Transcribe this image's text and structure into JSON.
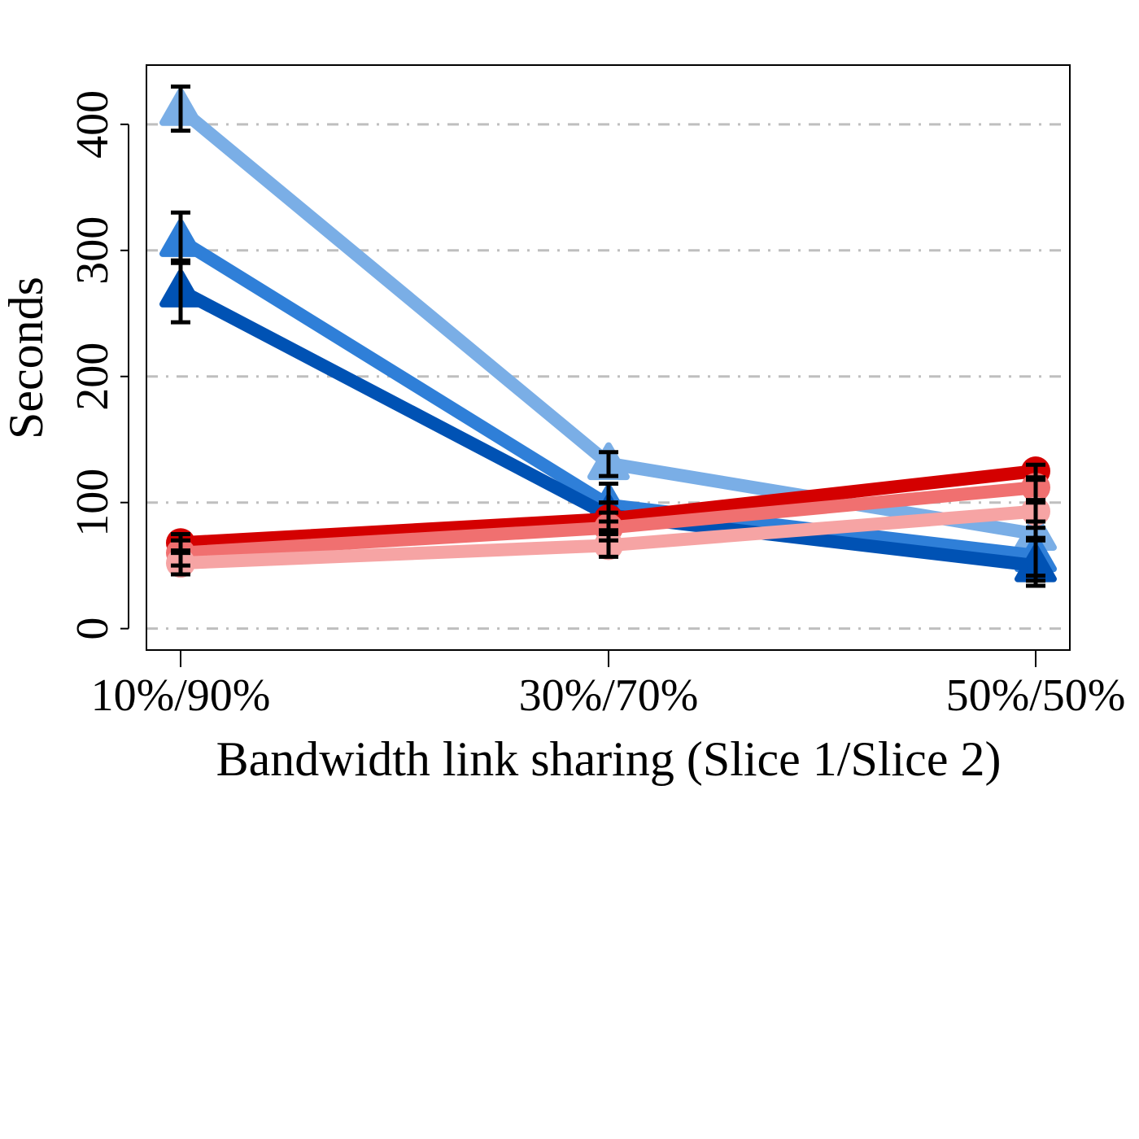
{
  "chart_data": {
    "type": "line",
    "title": "",
    "xlabel": "Bandwidth link sharing (Slice 1/Slice 2)",
    "ylabel": "Seconds",
    "categories": [
      "10%/90%",
      "30%/70%",
      "50%/50%"
    ],
    "ylim": [
      -17,
      447
    ],
    "yticks": [
      0,
      100,
      200,
      300,
      400
    ],
    "grid": true,
    "legend": "none",
    "series": [
      {
        "color": "#7aaee6",
        "marker": "triangle",
        "values": [
          412,
          131,
          75
        ],
        "err_low": [
          395,
          121,
          42
        ],
        "err_high": [
          430,
          140,
          102
        ]
      },
      {
        "color": "#2f7fd8",
        "marker": "triangle",
        "values": [
          308,
          98,
          58
        ],
        "err_low": [
          290,
          85,
          38
        ],
        "err_high": [
          330,
          115,
          80
        ]
      },
      {
        "color": "#0052b4",
        "marker": "triangle",
        "values": [
          268,
          90,
          50
        ],
        "err_low": [
          243,
          78,
          34
        ],
        "err_high": [
          292,
          100,
          72
        ]
      },
      {
        "color": "#d40000",
        "marker": "circle",
        "values": [
          68,
          87,
          125
        ],
        "err_low": [
          60,
          75,
          100
        ],
        "err_high": [
          75,
          100,
          130
        ]
      },
      {
        "color": "#f07070",
        "marker": "circle",
        "values": [
          60,
          80,
          112
        ],
        "err_low": [
          50,
          70,
          85
        ],
        "err_high": [
          70,
          92,
          120
        ]
      },
      {
        "color": "#f6a4a4",
        "marker": "circle",
        "values": [
          52,
          66,
          93
        ],
        "err_low": [
          43,
          57,
          70
        ],
        "err_high": [
          62,
          75,
          118
        ]
      }
    ]
  }
}
